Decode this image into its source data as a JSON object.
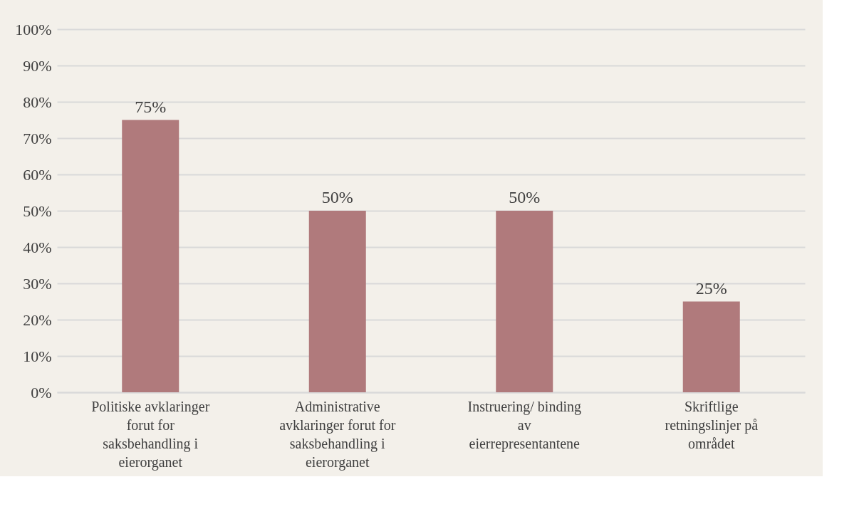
{
  "chart_data": {
    "type": "bar",
    "categories": [
      "Politiske avklaringer\nforut for\nsaksbehandling i\neierorganet",
      "Administrative\navklaringer forut for\nsaksbehandling i\neierorganet",
      "Instruering/ binding\nav\neierrepresentantene",
      "Skriftlige\nretningslinjer på\nområdet"
    ],
    "values": [
      75,
      50,
      50,
      25
    ],
    "value_labels": [
      "75%",
      "50%",
      "50%",
      "25%"
    ],
    "color": "#b07a7c",
    "ylim": [
      0,
      100
    ],
    "yticks": [
      {
        "value": 0,
        "label": "0%"
      },
      {
        "value": 10,
        "label": "10%"
      },
      {
        "value": 20,
        "label": "20%"
      },
      {
        "value": 30,
        "label": "30%"
      },
      {
        "value": 40,
        "label": "40%"
      },
      {
        "value": 50,
        "label": "50%"
      },
      {
        "value": 60,
        "label": "60%"
      },
      {
        "value": 70,
        "label": "70%"
      },
      {
        "value": 80,
        "label": "80%"
      },
      {
        "value": 90,
        "label": "90%"
      },
      {
        "value": 100,
        "label": "100%"
      }
    ],
    "grid": "y"
  }
}
